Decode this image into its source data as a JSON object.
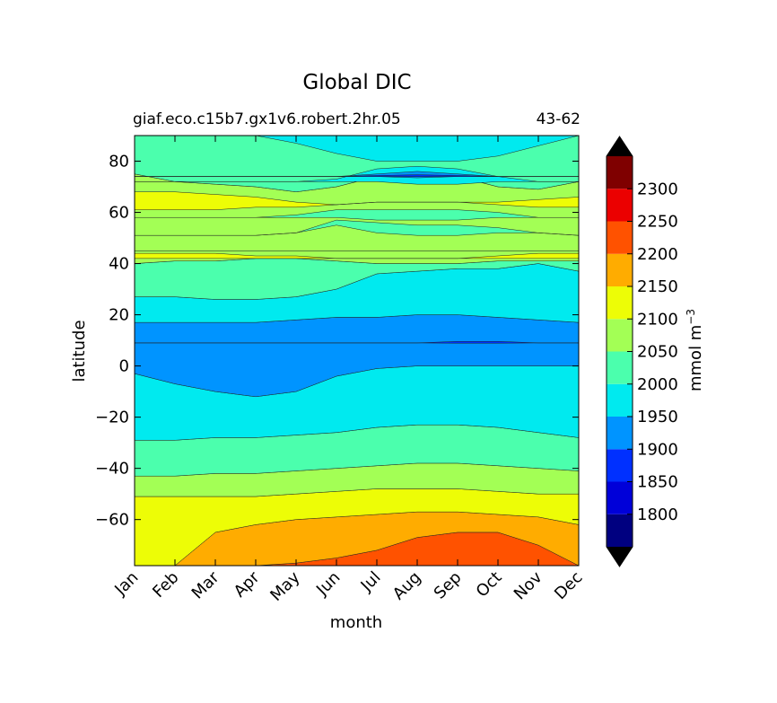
{
  "chart_data": {
    "type": "heatmap",
    "title": "Global DIC",
    "subtitle_left": "giaf.eco.c15b7.gx1v6.robert.2hr.05",
    "subtitle_right": "43-62",
    "xlabel": "month",
    "ylabel": "latitude",
    "x_categories": [
      "Jan",
      "Feb",
      "Mar",
      "Apr",
      "May",
      "Jun",
      "Jul",
      "Aug",
      "Sep",
      "Oct",
      "Nov",
      "Dec"
    ],
    "xlim": [
      0,
      11
    ],
    "ylim": [
      -78,
      90
    ],
    "yticks": [
      80,
      60,
      40,
      20,
      0,
      -20,
      -40,
      -60
    ],
    "ytick_labels": [
      "80",
      "60",
      "40",
      "20",
      "0",
      "−20",
      "−40",
      "−60"
    ],
    "colorbar": {
      "label": "mmol m",
      "label_superscript": "−3",
      "levels": [
        1750,
        1800,
        1850,
        1900,
        1950,
        2000,
        2050,
        2100,
        2150,
        2200,
        2250,
        2300,
        2350
      ],
      "tick_values": [
        1800,
        1850,
        1900,
        1950,
        2000,
        2050,
        2100,
        2150,
        2200,
        2250,
        2300
      ],
      "tick_labels": [
        "1800",
        "1850",
        "1900",
        "1950",
        "2000",
        "2050",
        "2100",
        "2150",
        "2200",
        "2250",
        "2300"
      ],
      "colors": [
        "#000080",
        "#0000d9",
        "#0030ff",
        "#0094ff",
        "#00eaef",
        "#4bffad",
        "#a3ff55",
        "#edfd06",
        "#ffac00",
        "#ff5200",
        "#eb0000",
        "#7f0000"
      ],
      "extend": "both",
      "under_color": "#000000",
      "over_color": "#000000"
    },
    "bands": [
      {
        "value": 2200,
        "lower": [
          -78,
          -78,
          -78,
          -78,
          -78,
          -78,
          -78,
          -78,
          -78,
          -78,
          -78,
          -78
        ],
        "upper": [
          -78,
          -78,
          -78,
          -78,
          -77,
          -75,
          -72,
          -67,
          -65,
          -65,
          -70,
          -78
        ]
      },
      {
        "value": 2150,
        "lower": [
          -78,
          -78,
          -78,
          -78,
          -77,
          -75,
          -72,
          -67,
          -65,
          -65,
          -70,
          -78
        ],
        "upper": [
          -78,
          -78,
          -65,
          -62,
          -60,
          -59,
          -58,
          -57,
          -57,
          -58,
          -59,
          -62
        ]
      },
      {
        "value": 2100,
        "lower": [
          -78,
          -78,
          -65,
          -62,
          -60,
          -59,
          -58,
          -57,
          -57,
          -58,
          -59,
          -62
        ],
        "upper": [
          -51,
          -51,
          -51,
          -51,
          -50,
          -49,
          -48,
          -48,
          -48,
          -49,
          -50,
          -50
        ]
      },
      {
        "value": 2050,
        "lower": [
          -51,
          -51,
          -51,
          -51,
          -50,
          -49,
          -48,
          -48,
          -48,
          -49,
          -50,
          -50
        ],
        "upper": [
          -43,
          -43,
          -42,
          -42,
          -41,
          -40,
          -39,
          -38,
          -38,
          -39,
          -40,
          -41
        ]
      },
      {
        "value": 2000,
        "lower": [
          -43,
          -43,
          -42,
          -42,
          -41,
          -40,
          -39,
          -38,
          -38,
          -39,
          -40,
          -41
        ],
        "upper": [
          -29,
          -29,
          -28,
          -28,
          -27,
          -26,
          -24,
          -23,
          -23,
          -24,
          -26,
          -28
        ]
      },
      {
        "value": 1950,
        "lower": [
          -29,
          -29,
          -28,
          -28,
          -27,
          -26,
          -24,
          -23,
          -23,
          -24,
          -26,
          -28
        ],
        "upper": [
          -3,
          -7,
          -10,
          -12,
          -10,
          -4,
          -1,
          0,
          0,
          0,
          0,
          0
        ]
      },
      {
        "value": 1900,
        "lower": [
          -3,
          -7,
          -10,
          -12,
          -10,
          -4,
          -1,
          0,
          0,
          0,
          0,
          0
        ],
        "upper": [
          17,
          17,
          17,
          17,
          18,
          19,
          19,
          20,
          20,
          19,
          18,
          17
        ]
      },
      {
        "value": 1950,
        "lower": [
          17,
          17,
          17,
          17,
          18,
          19,
          19,
          20,
          20,
          19,
          18,
          17
        ],
        "upper": [
          27,
          27,
          26,
          26,
          27,
          30,
          36,
          37,
          38,
          38,
          40,
          37
        ]
      },
      {
        "value": 2000,
        "lower": [
          27,
          27,
          26,
          26,
          27,
          30,
          36,
          37,
          38,
          38,
          40,
          37
        ],
        "upper": [
          40,
          41,
          41,
          42,
          42,
          41,
          40,
          40,
          40,
          41,
          41,
          41
        ]
      },
      {
        "value": 2050,
        "lower": [
          40,
          41,
          41,
          42,
          42,
          41,
          40,
          40,
          40,
          41,
          41,
          41
        ],
        "upper": [
          45,
          45,
          45,
          45,
          45,
          45,
          45,
          45,
          45,
          45,
          45,
          45
        ]
      },
      {
        "value": 2050,
        "lower": [
          45,
          45,
          45,
          45,
          45,
          45,
          45,
          45,
          45,
          45,
          45,
          45
        ],
        "upper": [
          75,
          72,
          71,
          70,
          68,
          70,
          74,
          76,
          74,
          70,
          69,
          72
        ]
      },
      {
        "value": 2000,
        "lower": [
          75,
          72,
          71,
          70,
          68,
          70,
          74,
          76,
          74,
          70,
          69,
          72
        ],
        "upper": [
          90,
          90,
          90,
          90,
          87,
          83,
          80,
          80,
          80,
          82,
          86,
          90
        ]
      },
      {
        "value": 2100,
        "lower": [
          61,
          61,
          61,
          62,
          62,
          63,
          64,
          64,
          64,
          63,
          62,
          62
        ],
        "upper": [
          68,
          68,
          67,
          66,
          64,
          63,
          64,
          64,
          64,
          64,
          65,
          66
        ]
      },
      {
        "value": 1950,
        "lower": [
          72,
          72,
          72,
          72,
          72,
          72,
          72,
          71,
          71,
          72,
          72,
          72
        ],
        "upper": [
          72,
          72,
          72,
          72,
          72,
          73,
          77,
          78,
          77,
          74,
          72,
          72
        ]
      },
      {
        "value": 2100,
        "lower": [
          42,
          42,
          42,
          42,
          42,
          42,
          42,
          42,
          42,
          42,
          42,
          42
        ],
        "upper": [
          44,
          44,
          44,
          43,
          43,
          42,
          42,
          42,
          42,
          43,
          44,
          44
        ]
      },
      {
        "value": 2000,
        "lower": [
          51,
          51,
          51,
          51,
          52,
          55,
          52,
          51,
          51,
          52,
          52,
          51
        ],
        "upper": [
          51,
          51,
          51,
          51,
          52,
          57,
          56,
          55,
          55,
          54,
          52,
          51
        ]
      },
      {
        "value": 2000,
        "lower": [
          58,
          58,
          58,
          58,
          58,
          58,
          57,
          57,
          57,
          58,
          58,
          58
        ],
        "upper": [
          58,
          58,
          58,
          58,
          59,
          61,
          61,
          61,
          61,
          60,
          58,
          58
        ]
      },
      {
        "value": 1900,
        "lower": [
          74,
          74,
          74,
          74,
          74,
          74,
          74,
          73.5,
          74,
          74,
          74,
          74
        ],
        "upper": [
          74,
          74,
          74,
          74,
          74,
          74,
          75,
          76,
          75,
          74,
          74,
          74
        ]
      },
      {
        "value": 1850,
        "lower": [
          74,
          74,
          74,
          74,
          74,
          74,
          74,
          74,
          74,
          74,
          74,
          74
        ],
        "upper": [
          74,
          74,
          74,
          74,
          74,
          74,
          74.4,
          74.7,
          74.4,
          74,
          74,
          74
        ]
      },
      {
        "value": 1850,
        "lower": [
          9,
          9,
          9,
          9,
          9,
          9,
          9,
          9,
          8.9,
          8.9,
          9,
          9
        ],
        "upper": [
          9,
          9,
          9,
          9,
          9,
          9,
          9,
          9,
          9.6,
          9.6,
          9,
          9
        ]
      }
    ]
  }
}
